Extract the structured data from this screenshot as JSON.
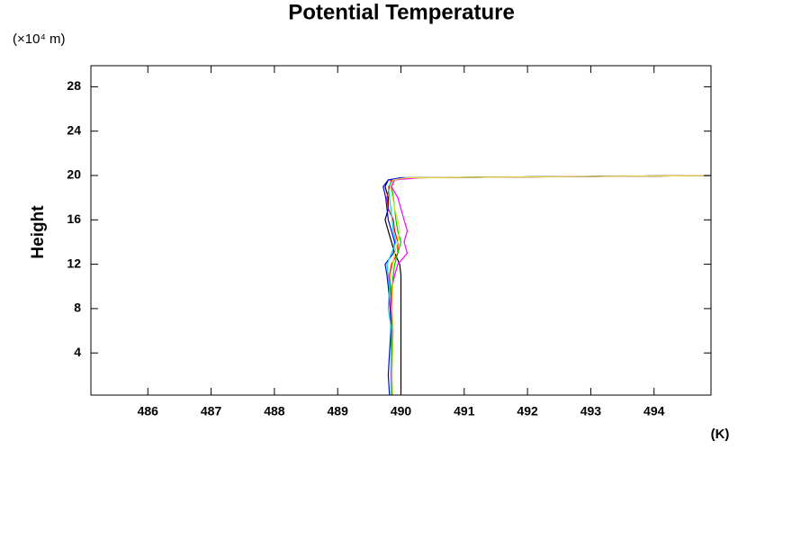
{
  "chart_data": {
    "type": "line",
    "title": "Potential Temperature",
    "y_unit_label": "(×10⁴ m)",
    "y_label": "Height",
    "x_unit_label": "(K)",
    "xlim": [
      485.1,
      494.9
    ],
    "ylim": [
      0.2,
      29.9
    ],
    "xticks": [
      486,
      487,
      488,
      489,
      490,
      491,
      492,
      493,
      494
    ],
    "yticks": [
      4,
      8,
      12,
      16,
      20,
      24,
      28
    ],
    "y": [
      0.2,
      2,
      4,
      6,
      8,
      10,
      11,
      12,
      13,
      14,
      15,
      16,
      17,
      18,
      19,
      19.6,
      19.8,
      20
    ],
    "series": [
      {
        "color": "#000000",
        "values": [
          490,
          490,
          490,
          490,
          490,
          490,
          490,
          489.98,
          489.9,
          489.85,
          489.8,
          489.75,
          489.8,
          489.8,
          489.75,
          489.8,
          490.2,
          495
        ]
      },
      {
        "color": "#ff0000",
        "values": [
          489.85,
          489.85,
          489.85,
          489.85,
          489.85,
          489.83,
          489.82,
          489.85,
          489.95,
          489.95,
          489.9,
          489.88,
          489.8,
          489.78,
          489.82,
          489.85,
          490.1,
          495
        ]
      },
      {
        "color": "#00c800",
        "values": [
          489.85,
          489.86,
          489.85,
          489.84,
          489.86,
          489.85,
          489.88,
          489.9,
          489.95,
          490.0,
          489.95,
          489.92,
          489.9,
          489.88,
          489.85,
          489.9,
          490.2,
          495
        ]
      },
      {
        "color": "#0000ff",
        "values": [
          489.82,
          489.8,
          489.82,
          489.84,
          489.83,
          489.8,
          489.78,
          489.75,
          489.88,
          489.9,
          489.85,
          489.8,
          489.78,
          489.76,
          489.72,
          489.8,
          490.0,
          495
        ]
      },
      {
        "color": "#00dcdc",
        "values": [
          489.85,
          489.84,
          489.85,
          489.85,
          489.8,
          489.82,
          489.8,
          489.78,
          489.85,
          489.92,
          489.88,
          489.86,
          489.84,
          489.82,
          489.8,
          489.88,
          490.15,
          495
        ]
      },
      {
        "color": "#ff00ff",
        "values": [
          489.86,
          489.85,
          489.86,
          489.86,
          489.85,
          489.86,
          489.9,
          489.95,
          490.1,
          490.05,
          490.1,
          490.05,
          490.0,
          489.95,
          489.85,
          489.9,
          490.3,
          495
        ]
      },
      {
        "color": "#e6dc32",
        "values": [
          489.87,
          489.86,
          489.87,
          489.88,
          489.86,
          489.87,
          489.85,
          489.87,
          489.9,
          489.95,
          489.98,
          489.95,
          489.9,
          489.87,
          489.83,
          489.88,
          490.1,
          495
        ]
      }
    ]
  }
}
